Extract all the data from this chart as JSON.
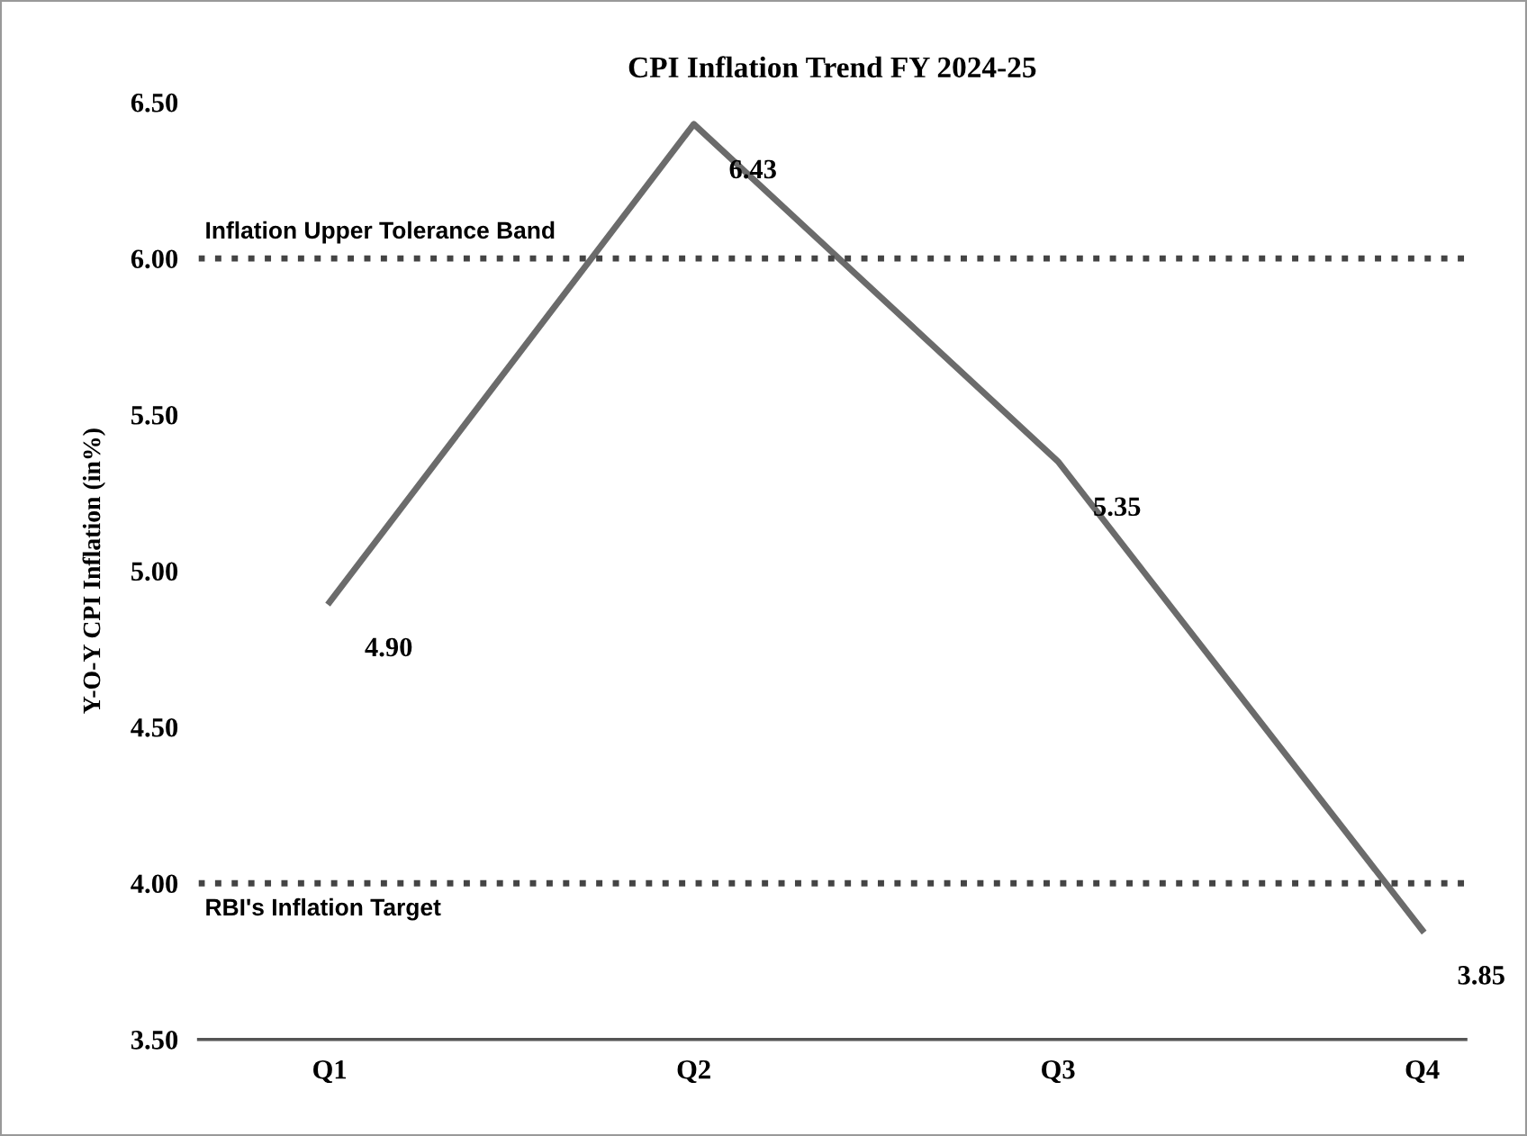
{
  "chart_data": {
    "type": "line",
    "title": "CPI Inflation Trend FY 2024-25",
    "ylabel": "Y-O-Y CPI Inflation (in%)",
    "categories": [
      "Q1",
      "Q2",
      "Q3",
      "Q4"
    ],
    "series": [
      {
        "color": "#6b6b6b",
        "values": [
          4.9,
          6.43,
          5.35,
          3.85
        ],
        "value_labels": [
          "4.90",
          "6.43",
          "5.35",
          "3.85"
        ]
      }
    ],
    "ylim": [
      3.5,
      6.5
    ],
    "yticks": [
      {
        "value": 3.5,
        "label": "3.50"
      },
      {
        "value": 4.0,
        "label": "4.00"
      },
      {
        "value": 4.5,
        "label": "4.50"
      },
      {
        "value": 5.0,
        "label": "5.00"
      },
      {
        "value": 5.5,
        "label": "5.50"
      },
      {
        "value": 6.0,
        "label": "6.00"
      },
      {
        "value": 6.5,
        "label": "6.50"
      }
    ],
    "ref_lines": [
      {
        "axis": "y",
        "value": 6.0,
        "label": "Inflation Upper Tolerance Band",
        "color": "#444444",
        "line_style": "dotted"
      },
      {
        "axis": "y",
        "value": 4.0,
        "label": "RBI's Inflation Target",
        "color": "#444444",
        "line_style": "dotted"
      }
    ],
    "grid": false,
    "legend": false,
    "marker": "none",
    "line_style": "solid"
  }
}
